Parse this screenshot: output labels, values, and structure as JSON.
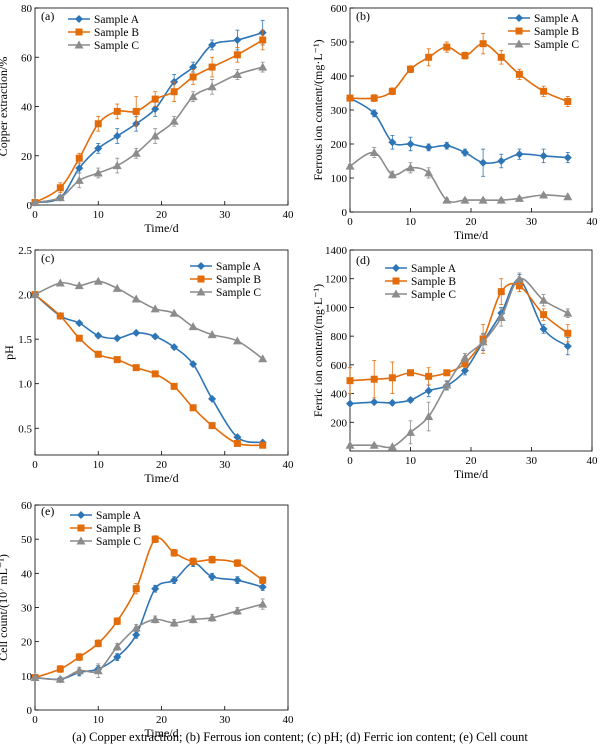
{
  "chart_data": [
    {
      "id": "a",
      "panel_label": "(a)",
      "type": "line",
      "xlabel": "Time/d",
      "ylabel": "Copper extraction/%",
      "xlim": [
        0,
        40
      ],
      "ylim": [
        0,
        80
      ],
      "xticks": [
        "0",
        "10",
        "20",
        "30",
        "40"
      ],
      "yticks": [
        "0",
        "20",
        "40",
        "60",
        "80"
      ],
      "legend": "top-left",
      "grid": false,
      "series": [
        {
          "name": "Sample A",
          "color": "#2e75b6",
          "marker": "diamond",
          "x": [
            0,
            4,
            7,
            10,
            13,
            16,
            19,
            22,
            25,
            28,
            32,
            36
          ],
          "y": [
            1,
            3,
            15,
            23,
            28,
            33,
            39,
            50,
            56,
            65,
            67,
            70
          ],
          "err": [
            0.5,
            1,
            2,
            2,
            3,
            3,
            3,
            3,
            2,
            2,
            4,
            5
          ]
        },
        {
          "name": "Sample B",
          "color": "#e36c0a",
          "marker": "square",
          "x": [
            0,
            4,
            7,
            10,
            13,
            16,
            19,
            22,
            25,
            28,
            32,
            36
          ],
          "y": [
            1,
            7,
            19,
            33,
            38,
            38,
            43,
            46,
            52,
            56,
            61,
            67
          ],
          "err": [
            0.5,
            2,
            2,
            3,
            3,
            6,
            3,
            4,
            3,
            4,
            3,
            4
          ]
        },
        {
          "name": "Sample C",
          "color": "#8c8c8c",
          "marker": "triangle",
          "x": [
            0,
            4,
            7,
            10,
            13,
            16,
            19,
            22,
            25,
            28,
            32,
            36
          ],
          "y": [
            1,
            3,
            10,
            13,
            16,
            21,
            28,
            34,
            44,
            48,
            53,
            56
          ],
          "err": [
            0.5,
            1,
            3,
            2,
            3,
            2,
            3,
            2,
            2,
            3,
            2,
            2
          ]
        }
      ]
    },
    {
      "id": "b",
      "panel_label": "(b)",
      "type": "line",
      "xlabel": "Time/d",
      "ylabel": "Ferrous ion content/(mg·L⁻¹)",
      "xlim": [
        0,
        40
      ],
      "ylim": [
        0,
        600
      ],
      "xticks": [
        "0",
        "10",
        "20",
        "30",
        "40"
      ],
      "yticks": [
        "0",
        "100",
        "200",
        "300",
        "400",
        "500",
        "600"
      ],
      "legend": "top-right",
      "grid": false,
      "series": [
        {
          "name": "Sample A",
          "color": "#2e75b6",
          "marker": "diamond",
          "x": [
            0,
            4,
            7,
            10,
            13,
            16,
            19,
            22,
            25,
            28,
            32,
            36
          ],
          "y": [
            335,
            290,
            205,
            200,
            190,
            195,
            175,
            145,
            150,
            170,
            165,
            160
          ],
          "err": [
            5,
            10,
            20,
            20,
            10,
            10,
            10,
            40,
            20,
            15,
            20,
            15
          ]
        },
        {
          "name": "Sample B",
          "color": "#e36c0a",
          "marker": "square",
          "x": [
            0,
            4,
            7,
            10,
            13,
            16,
            19,
            22,
            25,
            28,
            32,
            36
          ],
          "y": [
            335,
            335,
            355,
            420,
            455,
            485,
            460,
            495,
            455,
            405,
            355,
            325
          ],
          "err": [
            5,
            10,
            10,
            10,
            25,
            15,
            10,
            30,
            20,
            15,
            15,
            15
          ]
        },
        {
          "name": "Sample C",
          "color": "#8c8c8c",
          "marker": "triangle",
          "x": [
            0,
            4,
            7,
            10,
            13,
            16,
            19,
            22,
            25,
            28,
            32,
            36
          ],
          "y": [
            135,
            175,
            110,
            130,
            115,
            35,
            35,
            35,
            35,
            40,
            50,
            45
          ],
          "err": [
            5,
            15,
            10,
            15,
            15,
            5,
            5,
            5,
            5,
            5,
            5,
            5
          ]
        }
      ]
    },
    {
      "id": "c",
      "panel_label": "(c)",
      "type": "line",
      "xlabel": "Time/d",
      "ylabel": "pH",
      "xlim": [
        0,
        40
      ],
      "ylim": [
        0.2,
        2.5
      ],
      "xticks": [
        "0",
        "10",
        "20",
        "30",
        "40"
      ],
      "yticks": [
        "0.5",
        "1.0",
        "1.5",
        "2.0",
        "2.5"
      ],
      "ytick_values": [
        0.5,
        1.0,
        1.5,
        2.0,
        2.5
      ],
      "legend": "top-right",
      "grid": false,
      "series": [
        {
          "name": "Sample A",
          "color": "#2e75b6",
          "marker": "diamond",
          "x": [
            0,
            4,
            7,
            10,
            13,
            16,
            19,
            22,
            25,
            28,
            32,
            36
          ],
          "y": [
            2.0,
            1.76,
            1.68,
            1.54,
            1.51,
            1.57,
            1.53,
            1.41,
            1.22,
            0.83,
            0.4,
            0.34
          ]
        },
        {
          "name": "Sample B",
          "color": "#e36c0a",
          "marker": "square",
          "x": [
            0,
            4,
            7,
            10,
            13,
            16,
            19,
            22,
            25,
            28,
            32,
            36
          ],
          "y": [
            2.0,
            1.76,
            1.51,
            1.33,
            1.27,
            1.18,
            1.11,
            0.97,
            0.73,
            0.53,
            0.33,
            0.31
          ]
        },
        {
          "name": "Sample C",
          "color": "#8c8c8c",
          "marker": "triangle",
          "x": [
            0,
            4,
            7,
            10,
            13,
            16,
            19,
            22,
            25,
            28,
            32,
            36
          ],
          "y": [
            2.0,
            2.13,
            2.1,
            2.15,
            2.07,
            1.95,
            1.84,
            1.79,
            1.64,
            1.55,
            1.48,
            1.28
          ]
        }
      ]
    },
    {
      "id": "d",
      "panel_label": "(d)",
      "type": "line",
      "xlabel": "Time/d",
      "ylabel": "Ferric ion content/(mg·L⁻¹)",
      "xlim": [
        0,
        40
      ],
      "ylim": [
        0,
        1400
      ],
      "xticks": [
        "0",
        "10",
        "20",
        "30",
        "40"
      ],
      "yticks": [
        "200",
        "400",
        "600",
        "800",
        "1000",
        "1200",
        "1400"
      ],
      "ytick_values": [
        200,
        400,
        600,
        800,
        1000,
        1200,
        1400
      ],
      "legend": "top-left",
      "grid": false,
      "series": [
        {
          "name": "Sample A",
          "color": "#2e75b6",
          "marker": "diamond",
          "x": [
            0,
            4,
            7,
            10,
            13,
            16,
            19,
            22,
            25,
            28,
            32,
            36
          ],
          "y": [
            330,
            340,
            335,
            355,
            420,
            455,
            560,
            760,
            960,
            1190,
            850,
            730
          ],
          "err": [
            10,
            10,
            10,
            15,
            40,
            30,
            30,
            60,
            40,
            40,
            30,
            60
          ]
        },
        {
          "name": "Sample B",
          "color": "#e36c0a",
          "marker": "square",
          "x": [
            0,
            4,
            7,
            10,
            13,
            16,
            19,
            22,
            25,
            28,
            32,
            36
          ],
          "y": [
            490,
            500,
            510,
            545,
            520,
            545,
            610,
            780,
            1110,
            1150,
            950,
            820
          ],
          "err": [
            90,
            130,
            110,
            20,
            60,
            20,
            30,
            100,
            90,
            40,
            40,
            60
          ]
        },
        {
          "name": "Sample C",
          "color": "#8c8c8c",
          "marker": "triangle",
          "x": [
            0,
            4,
            7,
            10,
            13,
            16,
            19,
            22,
            25,
            28,
            32,
            36
          ],
          "y": [
            40,
            40,
            30,
            130,
            240,
            460,
            650,
            760,
            930,
            1200,
            1050,
            960
          ],
          "err": [
            5,
            10,
            5,
            80,
            100,
            30,
            30,
            50,
            60,
            40,
            40,
            30
          ]
        }
      ]
    },
    {
      "id": "e",
      "panel_label": "(e)",
      "type": "line",
      "xlabel": "Time/d",
      "ylabel": "Cell count/(10⁷ mL⁻¹)",
      "xlim": [
        0,
        40
      ],
      "ylim": [
        0,
        60
      ],
      "xticks": [
        "0",
        "10",
        "20",
        "30",
        "40"
      ],
      "yticks": [
        "0",
        "10",
        "20",
        "30",
        "40",
        "50",
        "60"
      ],
      "legend": "top-left",
      "grid": false,
      "series": [
        {
          "name": "Sample A",
          "color": "#2e75b6",
          "marker": "diamond",
          "x": [
            0,
            4,
            7,
            10,
            13,
            16,
            19,
            22,
            25,
            28,
            32,
            36
          ],
          "y": [
            9.5,
            9,
            11,
            12,
            15.5,
            22,
            35.5,
            38,
            43,
            39,
            38,
            36
          ],
          "err": [
            0.5,
            0.5,
            1,
            1,
            1,
            1,
            1,
            1,
            1,
            1,
            1,
            1
          ]
        },
        {
          "name": "Sample B",
          "color": "#e36c0a",
          "marker": "square",
          "x": [
            0,
            4,
            7,
            10,
            13,
            16,
            19,
            22,
            25,
            28,
            32,
            36
          ],
          "y": [
            9.5,
            12,
            15.5,
            19.5,
            26,
            35.5,
            50,
            46,
            43.5,
            44,
            43,
            38
          ],
          "err": [
            0.5,
            1,
            1,
            1,
            1,
            1.5,
            1,
            1,
            1,
            1,
            1,
            1
          ]
        },
        {
          "name": "Sample C",
          "color": "#8c8c8c",
          "marker": "triangle",
          "x": [
            0,
            4,
            7,
            10,
            13,
            16,
            19,
            22,
            25,
            28,
            32,
            36
          ],
          "y": [
            9.5,
            9,
            11.5,
            11.5,
            18.5,
            24,
            26.5,
            25.5,
            26.5,
            27,
            29,
            31
          ],
          "err": [
            0.5,
            0.5,
            1,
            2,
            1,
            1,
            1,
            1,
            1,
            1,
            1,
            1.5
          ]
        }
      ]
    }
  ],
  "caption": "(a)  Copper extraction; (b) Ferrous ion content; (c) pH; (d) Ferric ion content; (e) Cell count"
}
